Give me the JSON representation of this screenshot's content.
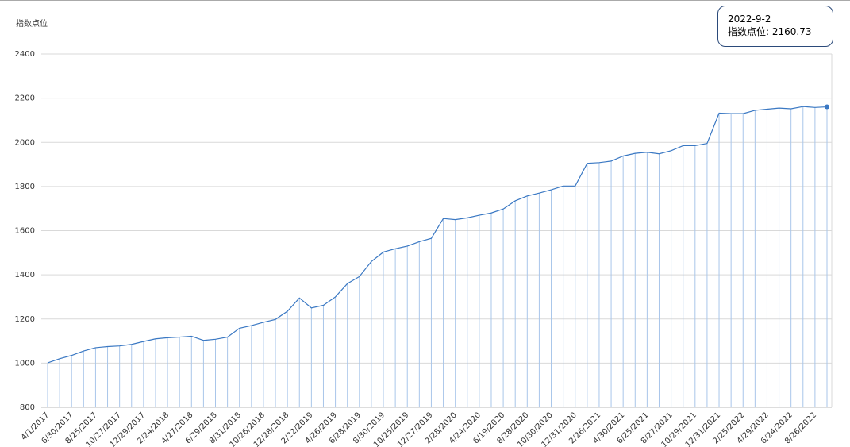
{
  "chart_data": {
    "type": "line",
    "y_axis_label": "指数点位",
    "tooltip": {
      "title": "2022-9-2",
      "text": "指数点位: 2160.73"
    },
    "categories": [
      "4/1/2017",
      null,
      "6/30/2017",
      null,
      "8/25/2017",
      null,
      "10/27/2017",
      null,
      "12/29/2017",
      null,
      "2/24/2018",
      null,
      "4/27/2018",
      null,
      "6/29/2018",
      null,
      "8/31/2018",
      null,
      "10/26/2018",
      null,
      "12/28/2018",
      null,
      "2/22/2019",
      null,
      "4/26/2019",
      null,
      "6/28/2019",
      null,
      "8/30/2019",
      null,
      "10/25/2019",
      null,
      "12/27/2019",
      null,
      "2/28/2020",
      null,
      "4/24/2020",
      null,
      "6/19/2020",
      null,
      "8/28/2020",
      null,
      "10/30/2020",
      null,
      "12/31/2020",
      null,
      "2/26/2021",
      null,
      "4/30/2021",
      null,
      "6/25/2021",
      null,
      "8/27/2021",
      null,
      "10/29/2021",
      null,
      "12/31/2021",
      null,
      "2/25/2022",
      null,
      "4/29/2022",
      null,
      "6/24/2022",
      null,
      "8/26/2022",
      null
    ],
    "series": [
      {
        "name": "指数点位",
        "color": "#3a78c3",
        "values": [
          1001,
          1020,
          1035,
          1055,
          1070,
          1075,
          1078,
          1085,
          1098,
          1110,
          1115,
          1118,
          1122,
          1103,
          1108,
          1118,
          1158,
          1170,
          1185,
          1198,
          1235,
          1295,
          1250,
          1262,
          1300,
          1360,
          1392,
          1460,
          1503,
          1518,
          1530,
          1550,
          1565,
          1655,
          1650,
          1658,
          1670,
          1680,
          1698,
          1735,
          1757,
          1770,
          1785,
          1802,
          1802,
          1905,
          1908,
          1915,
          1938,
          1950,
          1955,
          1948,
          1962,
          1985,
          1985,
          1995,
          2132,
          2130,
          2130,
          2145,
          2150,
          2155,
          2152,
          2162,
          2158,
          2160.73
        ]
      }
    ],
    "ylim": [
      800,
      2400
    ],
    "yticks": [
      800,
      1000,
      1200,
      1400,
      1600,
      1800,
      2000,
      2200,
      2400
    ],
    "grid": true,
    "drop_lines": true
  }
}
